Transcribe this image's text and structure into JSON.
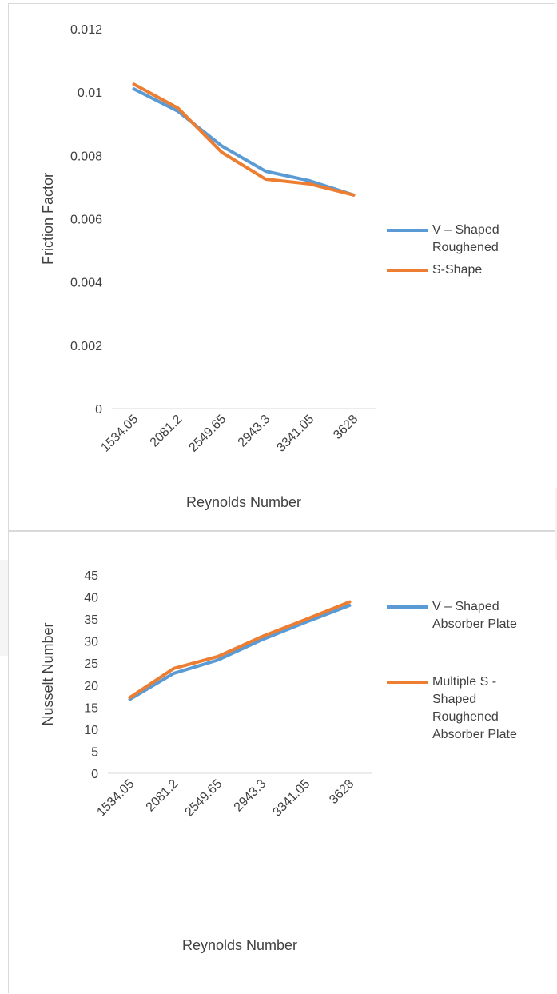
{
  "colors": {
    "series_blue": "#5b9bd5",
    "series_orange": "#ed7d31",
    "axis_text": "#404040",
    "axis_line": "#d9d9d9"
  },
  "chart_data": [
    {
      "type": "line",
      "title": "",
      "xlabel": "Reynolds Number",
      "ylabel": "Friction Factor",
      "categories": [
        "1534.05",
        "2081.2",
        "2549.65",
        "2943.3",
        "3341.05",
        "3628"
      ],
      "ylim": [
        0,
        0.012
      ],
      "yticks": [
        "0",
        "0.002",
        "0.004",
        "0.006",
        "0.008",
        "0.01",
        "0.012"
      ],
      "grid": false,
      "legend_position": "right",
      "series": [
        {
          "name": "V – Shaped Roughened",
          "color": "#5b9bd5",
          "values": [
            0.0101,
            0.0094,
            0.0083,
            0.0075,
            0.0072,
            0.00675
          ]
        },
        {
          "name": "S-Shape",
          "color": "#ed7d31",
          "values": [
            0.01025,
            0.0095,
            0.0081,
            0.00725,
            0.0071,
            0.00675
          ]
        }
      ]
    },
    {
      "type": "line",
      "title": "",
      "xlabel": "Reynolds Number",
      "ylabel": "Nusselt Number",
      "categories": [
        "1534.05",
        "2081.2",
        "2549.65",
        "2943.3",
        "3341.05",
        "3628"
      ],
      "ylim": [
        0,
        45
      ],
      "yticks": [
        "0",
        "5",
        "10",
        "15",
        "20",
        "25",
        "30",
        "35",
        "40",
        "45"
      ],
      "grid": false,
      "legend_position": "right",
      "series": [
        {
          "name": "V – Shaped Absorber Plate",
          "color": "#5b9bd5",
          "values": [
            16.8,
            22.7,
            25.7,
            30.3,
            34.3,
            38.1
          ]
        },
        {
          "name": "Multiple S - Shaped Roughened Absorber Plate",
          "color": "#ed7d31",
          "values": [
            17.2,
            23.8,
            26.5,
            31.0,
            34.9,
            38.9
          ]
        }
      ]
    }
  ],
  "legends": [
    {
      "items": [
        {
          "lines": [
            "V – Shaped",
            "Roughened"
          ]
        },
        {
          "lines": [
            "S-Shape"
          ]
        }
      ]
    },
    {
      "items": [
        {
          "lines": [
            "V – Shaped",
            "Absorber Plate"
          ]
        },
        {
          "lines": [
            "Multiple S -",
            "Shaped",
            "Roughened",
            "Absorber Plate"
          ]
        }
      ]
    }
  ]
}
